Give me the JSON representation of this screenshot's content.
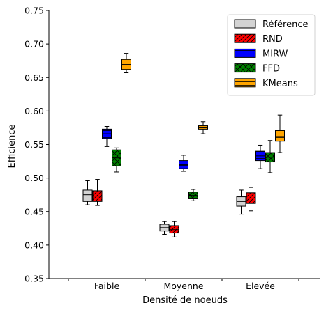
{
  "chart_data": {
    "type": "boxplot",
    "title": "",
    "xlabel": "Densité de noeuds",
    "ylabel": "Efficience",
    "ylim": [
      0.35,
      0.75
    ],
    "yticks": [
      "0.35",
      "0.40",
      "0.45",
      "0.50",
      "0.55",
      "0.60",
      "0.65",
      "0.70",
      "0.75"
    ],
    "categories": [
      "Faible",
      "Moyenne",
      "Elevée"
    ],
    "grid": false,
    "legend_position": "top-right",
    "series": [
      {
        "name": "Référence",
        "color": "#d3d3d3",
        "hatch": "none",
        "boxes": [
          {
            "min": 0.46,
            "q1": 0.465,
            "median": 0.475,
            "q3": 0.482,
            "max": 0.496
          },
          {
            "min": 0.416,
            "q1": 0.421,
            "median": 0.426,
            "q3": 0.431,
            "max": 0.435
          },
          {
            "min": 0.446,
            "q1": 0.458,
            "median": 0.465,
            "q3": 0.472,
            "max": 0.482
          }
        ]
      },
      {
        "name": "RND",
        "color": "#ff0000",
        "hatch": "diagonal",
        "boxes": [
          {
            "min": 0.459,
            "q1": 0.465,
            "median": 0.473,
            "q3": 0.481,
            "max": 0.498
          },
          {
            "min": 0.412,
            "q1": 0.418,
            "median": 0.423,
            "q3": 0.429,
            "max": 0.435
          },
          {
            "min": 0.451,
            "q1": 0.462,
            "median": 0.47,
            "q3": 0.478,
            "max": 0.486
          }
        ]
      },
      {
        "name": "MIRW",
        "color": "#0000ff",
        "hatch": "horizontal",
        "boxes": [
          {
            "min": 0.547,
            "q1": 0.559,
            "median": 0.566,
            "q3": 0.573,
            "max": 0.577
          },
          {
            "min": 0.51,
            "q1": 0.514,
            "median": 0.52,
            "q3": 0.526,
            "max": 0.534
          },
          {
            "min": 0.514,
            "q1": 0.526,
            "median": 0.533,
            "q3": 0.54,
            "max": 0.549
          }
        ]
      },
      {
        "name": "FFD",
        "color": "#008000",
        "hatch": "cross",
        "boxes": [
          {
            "min": 0.509,
            "q1": 0.518,
            "median": 0.53,
            "q3": 0.542,
            "max": 0.545
          },
          {
            "min": 0.466,
            "q1": 0.469,
            "median": 0.474,
            "q3": 0.479,
            "max": 0.483
          },
          {
            "min": 0.508,
            "q1": 0.524,
            "median": 0.531,
            "q3": 0.538,
            "max": 0.556
          }
        ]
      },
      {
        "name": "KMeans",
        "color": "#ffa500",
        "hatch": "horizontal",
        "boxes": [
          {
            "min": 0.657,
            "q1": 0.662,
            "median": 0.669,
            "q3": 0.677,
            "max": 0.686
          },
          {
            "min": 0.566,
            "q1": 0.573,
            "median": 0.575,
            "q3": 0.578,
            "max": 0.584
          },
          {
            "min": 0.538,
            "q1": 0.555,
            "median": 0.562,
            "q3": 0.571,
            "max": 0.594
          }
        ]
      }
    ]
  }
}
